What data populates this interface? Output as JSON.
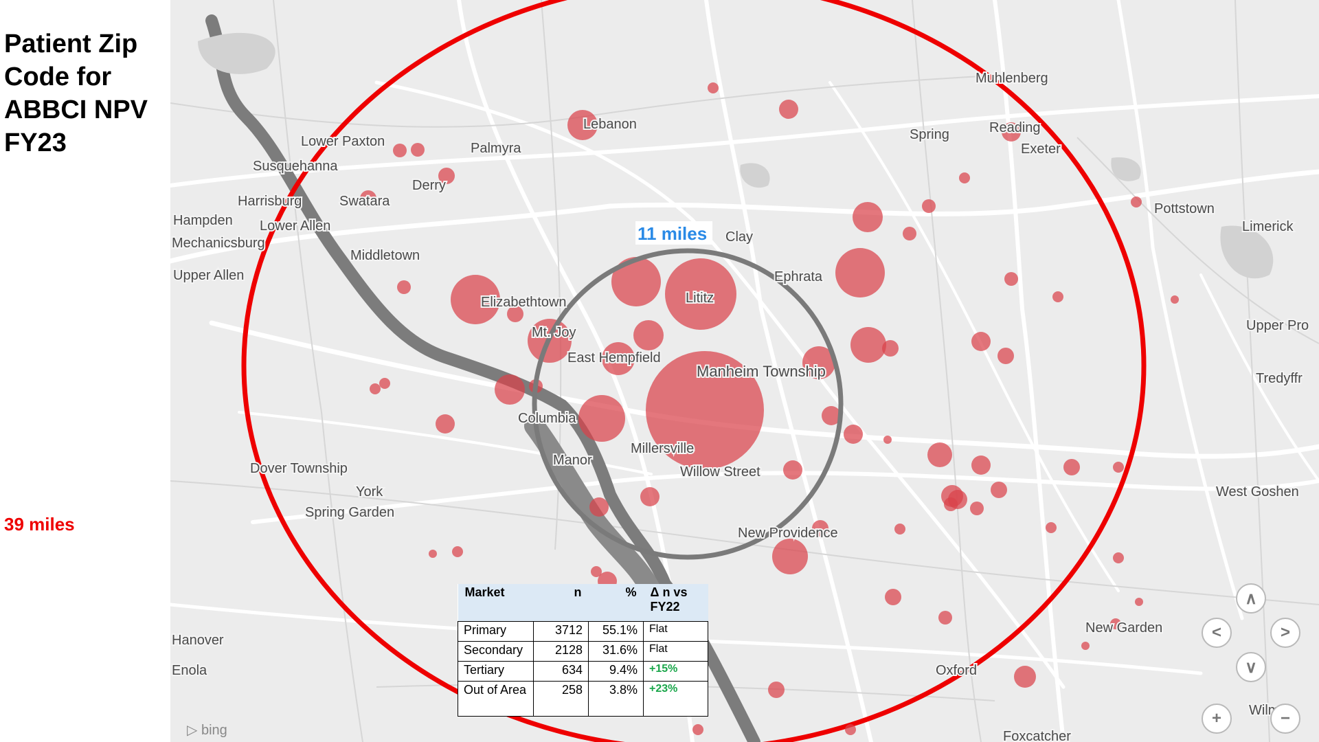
{
  "title": "Patient Zip Code for ABBCI NPV FY23",
  "outer_radius_label": "39 miles",
  "inner_radius_label": "11 miles",
  "colors": {
    "outer_ring": "#ee0000",
    "inner_ring": "#7a7a7a",
    "patient_dot": "#d9424b",
    "inner_label": "#2a8ae6",
    "growth": "#1aa64a"
  },
  "places": [
    "Muhlenberg",
    "Reading",
    "Exeter",
    "Spring",
    "Lebanon",
    "Palmyra",
    "Lower Paxton",
    "Susquehanna",
    "Derry",
    "Harrisburg",
    "Swatara",
    "Hampden",
    "Lower Allen",
    "Middletown",
    "Upper Allen",
    "Elizabethtown",
    "Mt. Joy",
    "East Hempfield",
    "Lititz",
    "Ephrata",
    "Clay",
    "Manheim Township",
    "Columbia",
    "Manor",
    "Millersville",
    "Willow Street",
    "New Providence",
    "Dover Township",
    "York",
    "Spring Garden",
    "Pottstown",
    "Limerick",
    "Upper Pro",
    "Tredyffr",
    "West Goshen",
    "New Garden",
    "Oxford",
    "Foxcatcher",
    "Hanover",
    "Enola",
    "Mechanicsburg",
    "Wilm"
  ],
  "market_table": {
    "headers": [
      "Market",
      "n",
      "%",
      "Δ n vs FY22"
    ],
    "rows": [
      {
        "market": "Primary",
        "n": "3712",
        "pct": "55.1%",
        "delta": "Flat"
      },
      {
        "market": "Secondary",
        "n": "2128",
        "pct": "31.6%",
        "delta": "Flat"
      },
      {
        "market": "Tertiary",
        "n": "634",
        "pct": "9.4%",
        "delta": "+15%"
      },
      {
        "market": "Out of Area",
        "n": "258",
        "pct": "3.8%",
        "delta": "+23%"
      }
    ]
  },
  "map_controls": {
    "up": "up-arrow-icon",
    "left": "left-arrow-icon",
    "right": "right-arrow-icon",
    "down": "down-arrow-icon",
    "zoom_in": "plus-icon",
    "zoom_out": "minus-icon"
  },
  "attribution": "bing"
}
